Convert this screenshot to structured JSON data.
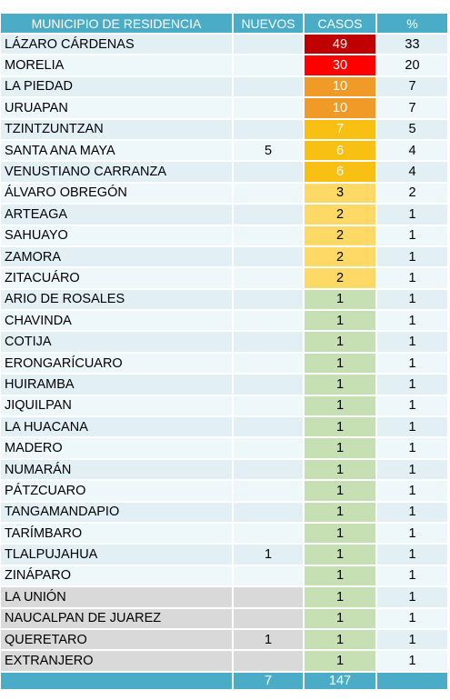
{
  "headers": {
    "municipio": "MUNICIPIO DE RESIDENCIA",
    "nuevos": "NUEVOS",
    "casos": "CASOS",
    "pct": "%"
  },
  "rows": [
    {
      "name": "LÁZARO CÁRDENAS",
      "nuevos": "",
      "casos": "49",
      "pct": "33",
      "casos_color": "#c00000",
      "grey": false
    },
    {
      "name": "MORELIA",
      "nuevos": "",
      "casos": "30",
      "pct": "20",
      "casos_color": "#ff0000",
      "grey": false
    },
    {
      "name": "LA PIEDAD",
      "nuevos": "",
      "casos": "10",
      "pct": "7",
      "casos_color": "#f09a28",
      "grey": false
    },
    {
      "name": "URUAPAN",
      "nuevos": "",
      "casos": "10",
      "pct": "7",
      "casos_color": "#f09a28",
      "grey": false
    },
    {
      "name": "TZINTZUNTZAN",
      "nuevos": "",
      "casos": "7",
      "pct": "5",
      "casos_color": "#f7c012",
      "grey": false
    },
    {
      "name": "SANTA ANA MAYA",
      "nuevos": "5",
      "casos": "6",
      "pct": "4",
      "casos_color": "#f7c012",
      "grey": false
    },
    {
      "name": "VENUSTIANO CARRANZA",
      "nuevos": "",
      "casos": "6",
      "pct": "4",
      "casos_color": "#f7c012",
      "grey": false
    },
    {
      "name": "ÁLVARO OBREGÓN",
      "nuevos": "",
      "casos": "3",
      "pct": "2",
      "casos_color": "#ffd966",
      "grey": false
    },
    {
      "name": "ARTEAGA",
      "nuevos": "",
      "casos": "2",
      "pct": "1",
      "casos_color": "#ffd966",
      "grey": false
    },
    {
      "name": "SAHUAYO",
      "nuevos": "",
      "casos": "2",
      "pct": "1",
      "casos_color": "#ffd966",
      "grey": false
    },
    {
      "name": "ZAMORA",
      "nuevos": "",
      "casos": "2",
      "pct": "1",
      "casos_color": "#ffd966",
      "grey": false
    },
    {
      "name": "ZITACUÁRO",
      "nuevos": "",
      "casos": "2",
      "pct": "1",
      "casos_color": "#ffd966",
      "grey": false
    },
    {
      "name": "ARIO DE ROSALES",
      "nuevos": "",
      "casos": "1",
      "pct": "1",
      "casos_color": "#c6e0b4",
      "grey": false
    },
    {
      "name": "CHAVINDA",
      "nuevos": "",
      "casos": "1",
      "pct": "1",
      "casos_color": "#c6e0b4",
      "grey": false
    },
    {
      "name": "COTIJA",
      "nuevos": "",
      "casos": "1",
      "pct": "1",
      "casos_color": "#c6e0b4",
      "grey": false
    },
    {
      "name": "ERONGARÍCUARO",
      "nuevos": "",
      "casos": "1",
      "pct": "1",
      "casos_color": "#c6e0b4",
      "grey": false
    },
    {
      "name": "HUIRAMBA",
      "nuevos": "",
      "casos": "1",
      "pct": "1",
      "casos_color": "#c6e0b4",
      "grey": false
    },
    {
      "name": "JIQUILPAN",
      "nuevos": "",
      "casos": "1",
      "pct": "1",
      "casos_color": "#c6e0b4",
      "grey": false
    },
    {
      "name": "LA HUACANA",
      "nuevos": "",
      "casos": "1",
      "pct": "1",
      "casos_color": "#c6e0b4",
      "grey": false
    },
    {
      "name": "MADERO",
      "nuevos": "",
      "casos": "1",
      "pct": "1",
      "casos_color": "#c6e0b4",
      "grey": false
    },
    {
      "name": "NUMARÁN",
      "nuevos": "",
      "casos": "1",
      "pct": "1",
      "casos_color": "#c6e0b4",
      "grey": false
    },
    {
      "name": "PÁTZCUARO",
      "nuevos": "",
      "casos": "1",
      "pct": "1",
      "casos_color": "#c6e0b4",
      "grey": false
    },
    {
      "name": "TANGAMANDAPIO",
      "nuevos": "",
      "casos": "1",
      "pct": "1",
      "casos_color": "#c6e0b4",
      "grey": false
    },
    {
      "name": "TARÍMBARO",
      "nuevos": "",
      "casos": "1",
      "pct": "1",
      "casos_color": "#c6e0b4",
      "grey": false
    },
    {
      "name": "TLALPUJAHUA",
      "nuevos": "1",
      "casos": "1",
      "pct": "1",
      "casos_color": "#c6e0b4",
      "grey": false
    },
    {
      "name": "ZINÁPARO",
      "nuevos": "",
      "casos": "1",
      "pct": "1",
      "casos_color": "#c6e0b4",
      "grey": false
    },
    {
      "name": "LA UNIÓN",
      "nuevos": "",
      "casos": "1",
      "pct": "1",
      "casos_color": "#c6e0b4",
      "grey": true
    },
    {
      "name": "NAUCALPAN DE JUAREZ",
      "nuevos": "",
      "casos": "1",
      "pct": "1",
      "casos_color": "#c6e0b4",
      "grey": true
    },
    {
      "name": "QUERETARO",
      "nuevos": "1",
      "casos": "1",
      "pct": "1",
      "casos_color": "#c6e0b4",
      "grey": true
    },
    {
      "name": "EXTRANJERO",
      "nuevos": "",
      "casos": "1",
      "pct": "1",
      "casos_color": "#c6e0b4",
      "grey": true
    }
  ],
  "totals": {
    "label": "",
    "nuevos": "7",
    "casos": "147",
    "pct": ""
  },
  "colors": {
    "header_bg": "#4aacc6",
    "row_light": "#e2f0f6",
    "grey_cell": "#d9d9d9"
  }
}
